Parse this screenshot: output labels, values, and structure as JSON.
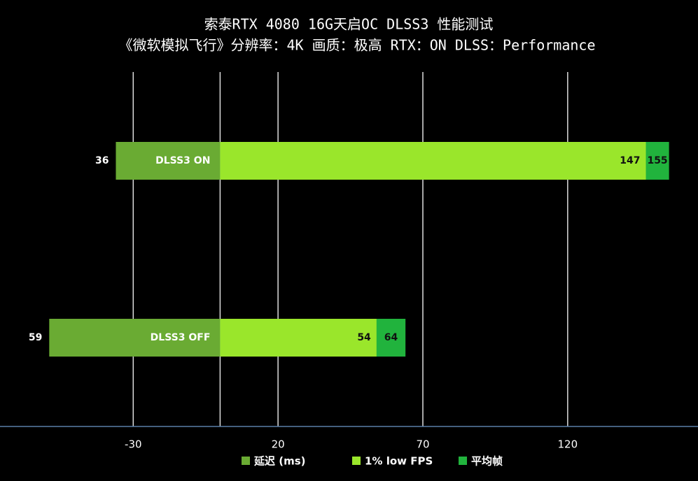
{
  "chart_data": {
    "type": "bar",
    "orientation": "horizontal",
    "title": "索泰RTX 4080 16G天启OC  DLSS3 性能测试",
    "subtitle": "《微软模拟飞行》分辨率：4K 画质：极高  RTX：ON  DLSS：Performance",
    "categories": [
      "DLSS3 ON",
      "DLSS3 OFF"
    ],
    "series": [
      {
        "name": "延迟 (ms)",
        "color": "#6aab33",
        "values": [
          36,
          59
        ]
      },
      {
        "name": "1% low FPS",
        "color": "#9ae62b",
        "values": [
          147,
          54
        ]
      },
      {
        "name": "平均帧",
        "color": "#21b33d",
        "values": [
          155,
          64
        ]
      }
    ],
    "xlim": [
      -76,
      165
    ],
    "xticks": [
      -30,
      20,
      70,
      120
    ],
    "grid": true,
    "legend": "bottom"
  }
}
